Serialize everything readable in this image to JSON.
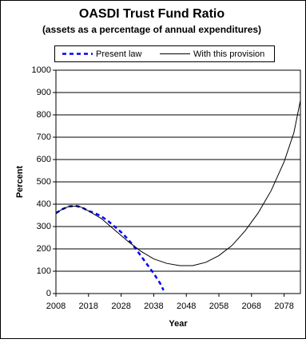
{
  "chart_data": {
    "type": "line",
    "title": "OASDI Trust Fund Ratio",
    "subtitle": "(assets as a percentage of annual expenditures)",
    "x_label": "Year",
    "y_label": "Percent",
    "xlim": [
      2008,
      2083
    ],
    "xticks": [
      2008,
      2018,
      2028,
      2038,
      2048,
      2058,
      2068,
      2078
    ],
    "ylim": [
      0,
      1000
    ],
    "yticks": [
      0,
      100,
      200,
      300,
      400,
      500,
      600,
      700,
      800,
      900,
      1000
    ],
    "grid": true,
    "series": [
      {
        "name": "Present law",
        "color": "#0000ff",
        "line_style": "dashed",
        "x": [
          2008,
          2010,
          2012,
          2014,
          2016,
          2018,
          2020,
          2022,
          2024,
          2026,
          2028,
          2030,
          2032,
          2034,
          2036,
          2038,
          2040,
          2041
        ],
        "values": [
          360,
          378,
          390,
          393,
          385,
          370,
          360,
          345,
          325,
          300,
          275,
          245,
          210,
          170,
          130,
          90,
          45,
          15
        ]
      },
      {
        "name": "With this provision",
        "color": "#000000",
        "line_style": "solid",
        "x": [
          2008,
          2010,
          2012,
          2015,
          2018,
          2022,
          2026,
          2030,
          2034,
          2038,
          2042,
          2046,
          2050,
          2054,
          2058,
          2062,
          2066,
          2070,
          2074,
          2078,
          2081,
          2083
        ],
        "values": [
          360,
          378,
          390,
          392,
          370,
          335,
          285,
          235,
          190,
          155,
          135,
          125,
          125,
          140,
          170,
          215,
          280,
          360,
          460,
          590,
          720,
          865
        ]
      }
    ]
  }
}
